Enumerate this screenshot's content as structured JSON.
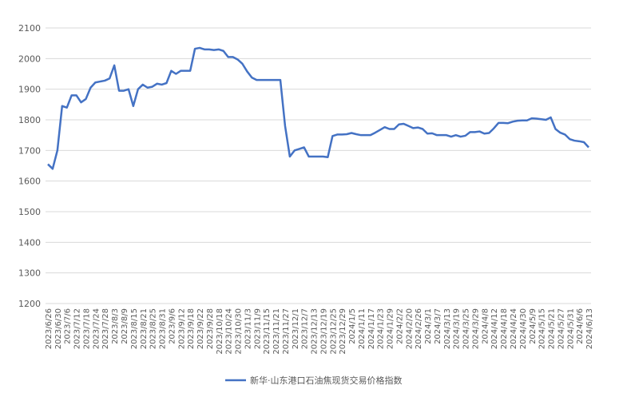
{
  "chart_data": {
    "type": "line",
    "categories": [
      "2023/6/26",
      null,
      "2023/6/30",
      null,
      "2023/7/6",
      null,
      "2023/7/12",
      null,
      "2023/7/18",
      null,
      "2023/7/24",
      null,
      "2023/7/28",
      null,
      "2023/8/3",
      null,
      "2023/8/9",
      null,
      "2023/8/15",
      null,
      "2023/8/21",
      null,
      "2023/8/25",
      null,
      "2023/8/31",
      null,
      "2023/9/6",
      null,
      "2023/9/12",
      null,
      "2023/9/18",
      null,
      "2023/9/22",
      null,
      "2023/9/28",
      null,
      "2023/10/18",
      null,
      "2023/10/24",
      null,
      "2023/10/30",
      null,
      "2023/11/3",
      null,
      "2023/11/9",
      null,
      "2023/11/15",
      null,
      "2023/11/21",
      null,
      "2023/11/27",
      null,
      "2023/12/1",
      null,
      "2023/12/7",
      null,
      "2023/12/13",
      null,
      "2023/12/19",
      null,
      "2023/12/25",
      null,
      "2023/12/29",
      null,
      "2024/1/5",
      null,
      "2024/1/11",
      null,
      "2024/1/17",
      null,
      "2024/1/23",
      null,
      "2024/1/29",
      null,
      "2024/2/2",
      null,
      "2024/2/20",
      null,
      "2024/2/26",
      null,
      "2024/3/1",
      null,
      "2024/3/7",
      null,
      "2024/3/13",
      null,
      "2024/3/19",
      null,
      "2024/3/25",
      null,
      "2024/3/29",
      null,
      "2024/4/8",
      null,
      "2024/4/12",
      null,
      "2024/4/18",
      null,
      "2024/4/24",
      null,
      "2024/4/30",
      null,
      "2024/5/9",
      null,
      "2024/5/15",
      null,
      "2024/5/21",
      null,
      "2024/5/27",
      null,
      "2024/5/31",
      null,
      "2024/6/6",
      null,
      "2024/6/13"
    ],
    "series": [
      {
        "name": "新华·山东港口石油焦现货交易价格指数",
        "color": "#4472c4",
        "values": [
          1655,
          1640,
          1700,
          1845,
          1840,
          1880,
          1880,
          1857,
          1868,
          1905,
          1922,
          1925,
          1928,
          1935,
          1978,
          1895,
          1895,
          1900,
          1845,
          1900,
          1915,
          1905,
          1908,
          1918,
          1915,
          1920,
          1960,
          1950,
          1960,
          1960,
          1960,
          2032,
          2035,
          2030,
          2030,
          2028,
          2030,
          2025,
          2005,
          2005,
          1997,
          1983,
          1958,
          1938,
          1930,
          1930,
          1930,
          1930,
          1930,
          1930,
          1780,
          1680,
          1700,
          1705,
          1710,
          1680,
          1680,
          1680,
          1680,
          1678,
          1747,
          1752,
          1752,
          1753,
          1757,
          1753,
          1750,
          1750,
          1750,
          1758,
          1767,
          1776,
          1770,
          1770,
          1785,
          1787,
          1780,
          1773,
          1775,
          1770,
          1755,
          1756,
          1750,
          1750,
          1750,
          1745,
          1750,
          1745,
          1748,
          1760,
          1760,
          1762,
          1755,
          1757,
          1772,
          1790,
          1790,
          1789,
          1794,
          1797,
          1798,
          1798,
          1805,
          1804,
          1802,
          1800,
          1808,
          1770,
          1758,
          1752,
          1737,
          1732,
          1730,
          1727,
          1710
        ]
      }
    ],
    "ylim": [
      1200,
      2100
    ],
    "yticks": [
      1200,
      1300,
      1400,
      1500,
      1600,
      1700,
      1800,
      1900,
      2000,
      2100
    ],
    "grid": true,
    "legend": "bottom"
  }
}
